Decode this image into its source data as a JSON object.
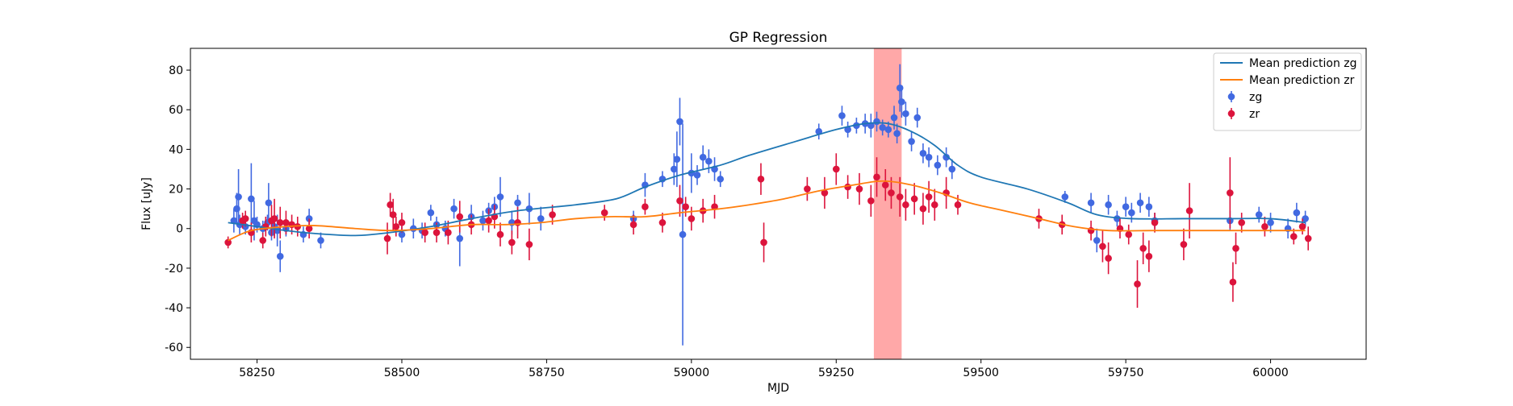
{
  "chart_data": {
    "type": "scatter",
    "title": "GP Regression",
    "xlabel": "MJD",
    "ylabel": "Flux [uJy]",
    "xlim": [
      58135,
      60165
    ],
    "ylim": [
      -66,
      91
    ],
    "xticks": [
      58250,
      58500,
      58750,
      59000,
      59250,
      59500,
      59750,
      60000
    ],
    "yticks": [
      -60,
      -40,
      -20,
      0,
      20,
      40,
      60,
      80
    ],
    "grid": false,
    "legend_position": "top-right",
    "legend": [
      {
        "label": "Mean prediction zg",
        "kind": "line",
        "color": "#1f77b4"
      },
      {
        "label": "Mean prediction zr",
        "kind": "line",
        "color": "#ff7f0e"
      },
      {
        "label": "zg",
        "kind": "errorbar",
        "color": "#4169e1"
      },
      {
        "label": "zr",
        "kind": "errorbar",
        "color": "#dc143c"
      }
    ],
    "highlight_band": {
      "x0": 59315,
      "x1": 59363,
      "color": "#ff9999"
    },
    "series": [
      {
        "name": "Mean prediction zg",
        "kind": "line",
        "color": "#1f77b4",
        "points": [
          [
            58200,
            3
          ],
          [
            58250,
            1
          ],
          [
            58300,
            -1
          ],
          [
            58350,
            -2.5
          ],
          [
            58420,
            -3.5
          ],
          [
            58480,
            -2
          ],
          [
            58550,
            1
          ],
          [
            58620,
            5
          ],
          [
            58700,
            9
          ],
          [
            58800,
            12
          ],
          [
            58870,
            15
          ],
          [
            58920,
            21
          ],
          [
            58980,
            27
          ],
          [
            59050,
            32
          ],
          [
            59100,
            37
          ],
          [
            59180,
            44
          ],
          [
            59250,
            50
          ],
          [
            59300,
            53
          ],
          [
            59340,
            53
          ],
          [
            59380,
            49
          ],
          [
            59420,
            42
          ],
          [
            59460,
            32
          ],
          [
            59500,
            26
          ],
          [
            59580,
            20
          ],
          [
            59650,
            13
          ],
          [
            59700,
            7
          ],
          [
            59760,
            5
          ],
          [
            59850,
            5
          ],
          [
            59930,
            5
          ],
          [
            60000,
            5
          ],
          [
            60060,
            3
          ]
        ]
      },
      {
        "name": "Mean prediction zr",
        "kind": "line",
        "color": "#ff7f0e",
        "points": [
          [
            58200,
            -6
          ],
          [
            58240,
            -1
          ],
          [
            58300,
            1
          ],
          [
            58350,
            1.5
          ],
          [
            58420,
            0
          ],
          [
            58480,
            -1
          ],
          [
            58550,
            0
          ],
          [
            58620,
            2
          ],
          [
            58680,
            2
          ],
          [
            58740,
            3
          ],
          [
            58800,
            5
          ],
          [
            58860,
            6
          ],
          [
            58920,
            6
          ],
          [
            58980,
            8
          ],
          [
            59050,
            10
          ],
          [
            59100,
            12
          ],
          [
            59160,
            15
          ],
          [
            59220,
            19
          ],
          [
            59280,
            22
          ],
          [
            59330,
            24
          ],
          [
            59380,
            22
          ],
          [
            59430,
            18
          ],
          [
            59480,
            13
          ],
          [
            59540,
            9
          ],
          [
            59600,
            5
          ],
          [
            59660,
            1
          ],
          [
            59720,
            -1
          ],
          [
            59800,
            -1
          ],
          [
            59880,
            -1
          ],
          [
            59960,
            -1
          ],
          [
            60060,
            -1
          ]
        ]
      },
      {
        "name": "zg",
        "kind": "errorbar",
        "color": "#4169e1",
        "points": [
          [
            58210,
            4,
            6
          ],
          [
            58215,
            10,
            8
          ],
          [
            58218,
            16,
            14
          ],
          [
            58220,
            2,
            5
          ],
          [
            58230,
            1,
            4
          ],
          [
            58240,
            15,
            18
          ],
          [
            58245,
            4,
            10
          ],
          [
            58250,
            2,
            4
          ],
          [
            58260,
            0,
            4
          ],
          [
            58268,
            3,
            4
          ],
          [
            58270,
            13,
            10
          ],
          [
            58275,
            -2,
            4
          ],
          [
            58280,
            1,
            5
          ],
          [
            58285,
            -1,
            8
          ],
          [
            58290,
            -14,
            8
          ],
          [
            58300,
            0,
            4
          ],
          [
            58330,
            -3,
            4
          ],
          [
            58340,
            5,
            5
          ],
          [
            58360,
            -6,
            4
          ],
          [
            58500,
            -3,
            4
          ],
          [
            58520,
            0,
            5
          ],
          [
            58535,
            -1,
            4
          ],
          [
            58550,
            8,
            4
          ],
          [
            58560,
            2,
            4
          ],
          [
            58575,
            0,
            4
          ],
          [
            58590,
            10,
            5
          ],
          [
            58600,
            -5,
            14
          ],
          [
            58620,
            6,
            6
          ],
          [
            58640,
            4,
            5
          ],
          [
            58650,
            9,
            4
          ],
          [
            58660,
            11,
            5
          ],
          [
            58670,
            16,
            10
          ],
          [
            58690,
            3,
            6
          ],
          [
            58700,
            13,
            4
          ],
          [
            58720,
            10,
            8
          ],
          [
            58740,
            5,
            6
          ],
          [
            58900,
            5,
            4
          ],
          [
            58920,
            22,
            6
          ],
          [
            58950,
            25,
            4
          ],
          [
            58970,
            30,
            8
          ],
          [
            58975,
            35,
            14
          ],
          [
            58980,
            54,
            12
          ],
          [
            58985,
            -3,
            56
          ],
          [
            59000,
            28,
            10
          ],
          [
            59010,
            27,
            5
          ],
          [
            59020,
            36,
            6
          ],
          [
            59030,
            34,
            6
          ],
          [
            59040,
            30,
            6
          ],
          [
            59050,
            25,
            4
          ],
          [
            59220,
            49,
            4
          ],
          [
            59260,
            57,
            5
          ],
          [
            59270,
            50,
            4
          ],
          [
            59285,
            52,
            4
          ],
          [
            59300,
            53,
            5
          ],
          [
            59310,
            52,
            6
          ],
          [
            59320,
            54,
            5
          ],
          [
            59330,
            51,
            4
          ],
          [
            59340,
            50,
            4
          ],
          [
            59350,
            56,
            6
          ],
          [
            59355,
            48,
            5
          ],
          [
            59360,
            71,
            12
          ],
          [
            59363,
            64,
            8
          ],
          [
            59370,
            58,
            6
          ],
          [
            59380,
            44,
            5
          ],
          [
            59390,
            56,
            5
          ],
          [
            59400,
            38,
            5
          ],
          [
            59410,
            36,
            5
          ],
          [
            59425,
            32,
            5
          ],
          [
            59440,
            36,
            5
          ],
          [
            59450,
            30,
            5
          ],
          [
            59645,
            16,
            3
          ],
          [
            59690,
            13,
            5
          ],
          [
            59700,
            -6,
            6
          ],
          [
            59720,
            12,
            5
          ],
          [
            59735,
            5,
            4
          ],
          [
            59750,
            11,
            5
          ],
          [
            59760,
            8,
            5
          ],
          [
            59775,
            13,
            5
          ],
          [
            59790,
            11,
            5
          ],
          [
            59800,
            4,
            4
          ],
          [
            59930,
            4,
            5
          ],
          [
            59980,
            7,
            4
          ],
          [
            60000,
            3,
            5
          ],
          [
            60030,
            0,
            5
          ],
          [
            60045,
            8,
            5
          ],
          [
            60060,
            5,
            4
          ]
        ]
      },
      {
        "name": "zr",
        "kind": "errorbar",
        "color": "#dc143c",
        "points": [
          [
            58200,
            -7,
            3
          ],
          [
            58225,
            4,
            4
          ],
          [
            58230,
            5,
            4
          ],
          [
            58240,
            -2,
            5
          ],
          [
            58260,
            -6,
            4
          ],
          [
            58265,
            1,
            5
          ],
          [
            58275,
            4,
            8
          ],
          [
            58280,
            5,
            10
          ],
          [
            58290,
            3,
            8
          ],
          [
            58300,
            3,
            6
          ],
          [
            58310,
            2,
            5
          ],
          [
            58320,
            1,
            5
          ],
          [
            58340,
            0,
            5
          ],
          [
            58475,
            -5,
            8
          ],
          [
            58480,
            12,
            6
          ],
          [
            58485,
            7,
            8
          ],
          [
            58490,
            1,
            5
          ],
          [
            58500,
            3,
            5
          ],
          [
            58540,
            -2,
            5
          ],
          [
            58560,
            -2,
            5
          ],
          [
            58580,
            -2,
            6
          ],
          [
            58600,
            6,
            8
          ],
          [
            58620,
            2,
            5
          ],
          [
            58650,
            4,
            6
          ],
          [
            58660,
            6,
            6
          ],
          [
            58670,
            -3,
            6
          ],
          [
            58690,
            -7,
            6
          ],
          [
            58700,
            3,
            8
          ],
          [
            58720,
            -8,
            8
          ],
          [
            58760,
            7,
            5
          ],
          [
            58850,
            8,
            4
          ],
          [
            58900,
            2,
            5
          ],
          [
            58920,
            11,
            4
          ],
          [
            58950,
            3,
            5
          ],
          [
            58980,
            14,
            8
          ],
          [
            58990,
            11,
            5
          ],
          [
            59000,
            5,
            6
          ],
          [
            59020,
            9,
            6
          ],
          [
            59040,
            11,
            6
          ],
          [
            59120,
            25,
            8
          ],
          [
            59125,
            -7,
            10
          ],
          [
            59200,
            20,
            6
          ],
          [
            59230,
            18,
            8
          ],
          [
            59250,
            30,
            8
          ],
          [
            59270,
            21,
            6
          ],
          [
            59290,
            20,
            8
          ],
          [
            59310,
            14,
            8
          ],
          [
            59320,
            26,
            10
          ],
          [
            59335,
            22,
            8
          ],
          [
            59345,
            18,
            8
          ],
          [
            59360,
            16,
            10
          ],
          [
            59370,
            12,
            8
          ],
          [
            59385,
            15,
            8
          ],
          [
            59400,
            10,
            8
          ],
          [
            59410,
            16,
            8
          ],
          [
            59420,
            12,
            8
          ],
          [
            59440,
            18,
            8
          ],
          [
            59460,
            12,
            5
          ],
          [
            59600,
            5,
            5
          ],
          [
            59640,
            2,
            5
          ],
          [
            59690,
            -1,
            5
          ],
          [
            59710,
            -9,
            8
          ],
          [
            59720,
            -15,
            8
          ],
          [
            59740,
            0,
            5
          ],
          [
            59755,
            -3,
            5
          ],
          [
            59770,
            -28,
            12
          ],
          [
            59780,
            -10,
            8
          ],
          [
            59790,
            -14,
            8
          ],
          [
            59800,
            3,
            5
          ],
          [
            59850,
            -8,
            8
          ],
          [
            59860,
            9,
            14
          ],
          [
            59930,
            18,
            18
          ],
          [
            59935,
            -27,
            10
          ],
          [
            59940,
            -10,
            8
          ],
          [
            59950,
            3,
            5
          ],
          [
            59990,
            1,
            5
          ],
          [
            60040,
            -4,
            4
          ],
          [
            60055,
            1,
            4
          ],
          [
            60065,
            -5,
            6
          ]
        ]
      }
    ]
  }
}
